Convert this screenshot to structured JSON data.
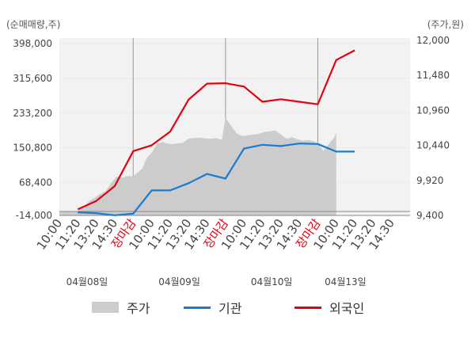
{
  "units": {
    "left": "(순매매량,주)",
    "right": "(주가,원)"
  },
  "legend": {
    "price": "주가",
    "institution": "기관",
    "foreign": "외국인"
  },
  "colors": {
    "price_area": "#cccccc",
    "institution": "#1a7bd0",
    "foreign": "#e60012",
    "close_label": "#e60012",
    "grid": "#e8e8e8",
    "plot_bg": "#f2f2f2"
  },
  "chart_data": {
    "type": "line",
    "left_axis": {
      "label": "(순매매량,주)",
      "ticks": [
        "398,000",
        "315,600",
        "233,200",
        "150,800",
        "68,400",
        "-14,000"
      ],
      "range": [
        -14000,
        398000
      ]
    },
    "right_axis": {
      "label": "(주가,원)",
      "ticks": [
        "12,000",
        "11,480",
        "10,960",
        "10,440",
        "9,920",
        "9,400"
      ],
      "range": [
        9400,
        12000
      ]
    },
    "x_ticks": [
      {
        "label": "10:00",
        "close": false
      },
      {
        "label": "11:20",
        "close": false
      },
      {
        "label": "13:20",
        "close": false
      },
      {
        "label": "14:30",
        "close": false
      },
      {
        "label": "장마감",
        "close": true
      },
      {
        "label": "10:00",
        "close": false
      },
      {
        "label": "11:20",
        "close": false
      },
      {
        "label": "13:20",
        "close": false
      },
      {
        "label": "14:30",
        "close": false
      },
      {
        "label": "장마감",
        "close": true
      },
      {
        "label": "10:00",
        "close": false
      },
      {
        "label": "11:20",
        "close": false
      },
      {
        "label": "13:20",
        "close": false
      },
      {
        "label": "14:30",
        "close": false
      },
      {
        "label": "장마감",
        "close": true
      },
      {
        "label": "10:00",
        "close": false
      },
      {
        "label": "11:20",
        "close": false
      },
      {
        "label": "13:20",
        "close": false
      },
      {
        "label": "14:30",
        "close": false
      }
    ],
    "dates": [
      {
        "label": "04월08일",
        "tick": 1.5
      },
      {
        "label": "04월09일",
        "tick": 6.5
      },
      {
        "label": "04월10일",
        "tick": 11.5
      },
      {
        "label": "04월13일",
        "tick": 15.5
      }
    ],
    "series": [
      {
        "name": "주가",
        "kind": "area",
        "axis": "right",
        "x": [
          0,
          0.3,
          0.6,
          0.9,
          1.0,
          1.3,
          1.6,
          1.9,
          2.2,
          2.5,
          2.8,
          3.1,
          3.4,
          3.7,
          4.0,
          4.5,
          4.7,
          5.0,
          5.3,
          5.6,
          5.8,
          6.1,
          6.4,
          6.7,
          7.0,
          7.3,
          7.6,
          7.9,
          8.2,
          8.5,
          8.8,
          9.0,
          9.3,
          9.6,
          9.9,
          10.2,
          10.5,
          10.8,
          11.1,
          11.4,
          11.7,
          12.0,
          12.3,
          12.6,
          12.9,
          13.2,
          13.5,
          13.8,
          14.0,
          14.3,
          14.6,
          14.9,
          15.0
        ],
        "values": [
          9460,
          9455,
          9450,
          9455,
          9470,
          9520,
          9610,
          9660,
          9720,
          9760,
          9880,
          9980,
          9960,
          9985,
          9980,
          10100,
          10240,
          10330,
          10470,
          10490,
          10470,
          10460,
          10470,
          10480,
          10540,
          10550,
          10555,
          10545,
          10540,
          10550,
          10520,
          10850,
          10730,
          10620,
          10580,
          10590,
          10600,
          10610,
          10640,
          10650,
          10660,
          10600,
          10540,
          10560,
          10530,
          10510,
          10520,
          10500,
          10470,
          10360,
          10460,
          10560,
          10640
        ]
      },
      {
        "name": "기관",
        "kind": "line",
        "axis": "left",
        "x": [
          1,
          2,
          3,
          4,
          5,
          6,
          7,
          8,
          9,
          10,
          11,
          12,
          13,
          14,
          15,
          16
        ],
        "values": [
          -2000,
          -4000,
          -9000,
          -5000,
          50000,
          50000,
          67000,
          89000,
          78000,
          149000,
          158000,
          155000,
          161000,
          160000,
          142000,
          142000
        ]
      },
      {
        "name": "외국인",
        "kind": "line",
        "axis": "left",
        "x": [
          1,
          2,
          3,
          4,
          5,
          6,
          7,
          8,
          9,
          10,
          11,
          12,
          13,
          14,
          15,
          16
        ],
        "values": [
          5000,
          25000,
          60000,
          143000,
          157000,
          189000,
          265000,
          303000,
          304000,
          296000,
          260000,
          266000,
          260000,
          254000,
          359000,
          382000
        ]
      }
    ]
  }
}
